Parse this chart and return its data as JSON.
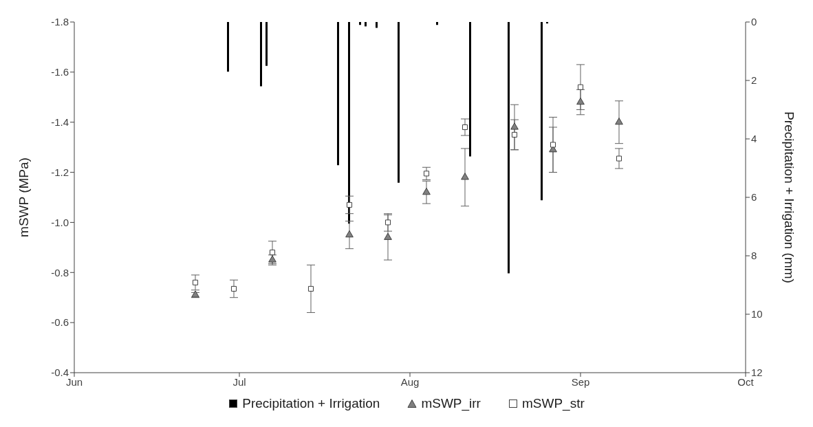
{
  "chart_data": {
    "type": "scatter",
    "ylabel": "mSWP (MPa)",
    "y2label": "Precipitation + Irrigation (mm)",
    "xlim": [
      "--06-01",
      "--10-01"
    ],
    "xticks": [
      {
        "value": "--06-01",
        "label": "Jun"
      },
      {
        "value": "--07-01",
        "label": "Jul"
      },
      {
        "value": "--08-01",
        "label": "Aug"
      },
      {
        "value": "--09-01",
        "label": "Sep"
      },
      {
        "value": "--10-01",
        "label": "Oct"
      }
    ],
    "ylim": [
      -0.4,
      -1.8
    ],
    "yticks": [
      {
        "value": -1.8,
        "label": "-1.8"
      },
      {
        "value": -1.6,
        "label": "-1.6"
      },
      {
        "value": -1.4,
        "label": "-1.4"
      },
      {
        "value": -1.2,
        "label": "-1.2"
      },
      {
        "value": -1.0,
        "label": "-1.0"
      },
      {
        "value": -0.8,
        "label": "-0.8"
      },
      {
        "value": -0.6,
        "label": "-0.6"
      },
      {
        "value": -0.4,
        "label": "-0.4"
      }
    ],
    "y2lim": [
      12,
      0
    ],
    "y2ticks": [
      0,
      2,
      4,
      6,
      8,
      10,
      12
    ],
    "grid": false,
    "legend": "bottom",
    "series": [
      {
        "name": "Precipitation + Irrigation",
        "type": "bar",
        "axis": "y2",
        "color": "#000000",
        "x": [
          "--06-29",
          "--07-05",
          "--07-06",
          "--07-19",
          "--07-21",
          "--07-23",
          "--07-24",
          "--07-26",
          "--07-30",
          "--08-06",
          "--08-12",
          "--08-19",
          "--08-25",
          "--08-26"
        ],
        "values": [
          1.7,
          2.2,
          1.5,
          4.9,
          6.9,
          0.1,
          0.15,
          0.2,
          5.5,
          0.1,
          4.6,
          8.6,
          6.1,
          0.05
        ]
      },
      {
        "name": "mSWP_irr",
        "marker": "triangle",
        "color": "#808080",
        "x": [
          "--06-23",
          "--06-30",
          "--07-07",
          "--07-14",
          "--07-21",
          "--07-28",
          "--08-04",
          "--08-11",
          "--08-20",
          "--08-27",
          "--09-01",
          "--09-08"
        ],
        "values": [
          -0.71,
          null,
          -0.85,
          null,
          -0.95,
          -0.94,
          -1.12,
          -1.18,
          -1.38,
          -1.29,
          -1.48,
          -1.4
        ],
        "errors": [
          0.01,
          null,
          0.02,
          null,
          0.055,
          0.09,
          0.045,
          0.115,
          0.09,
          0.09,
          0.05,
          0.085
        ]
      },
      {
        "name": "mSWP_str",
        "marker": "square",
        "color": "#ffffff",
        "x": [
          "--06-23",
          "--06-30",
          "--07-07",
          "--07-14",
          "--07-21",
          "--07-28",
          "--08-04",
          "--08-11",
          "--08-20",
          "--08-27",
          "--09-01",
          "--09-08"
        ],
        "values": [
          -0.76,
          -0.735,
          -0.88,
          -0.735,
          -1.07,
          -1.0,
          -1.195,
          -1.38,
          -1.35,
          -1.31,
          -1.54,
          -1.255
        ],
        "errors": [
          0.03,
          0.035,
          0.045,
          0.095,
          0.035,
          0.035,
          0.025,
          0.033,
          0.06,
          0.11,
          0.09,
          0.04
        ]
      }
    ]
  }
}
